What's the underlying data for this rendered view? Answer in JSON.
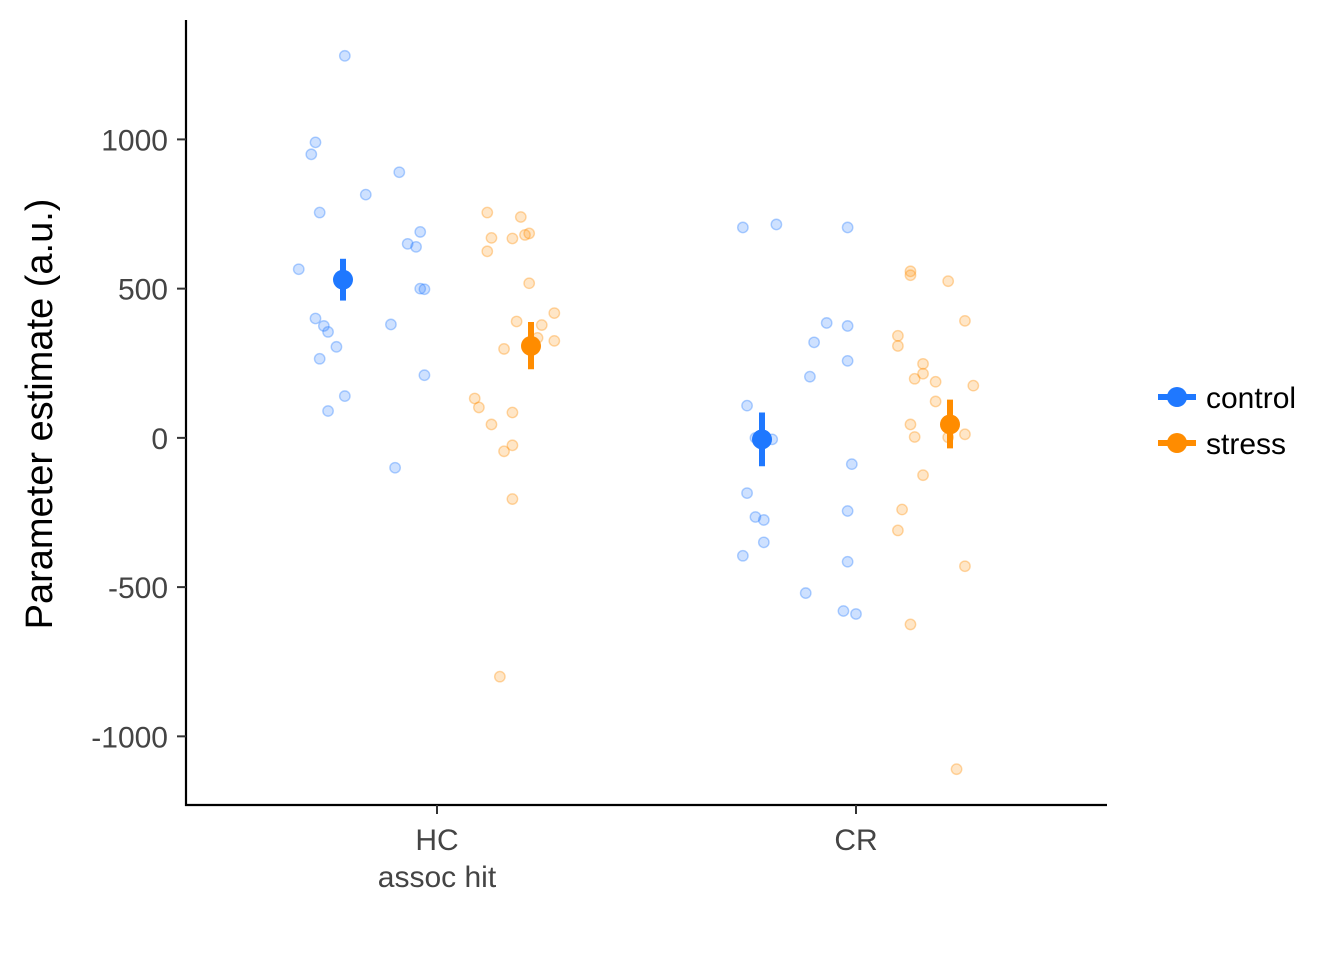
{
  "chart_data": {
    "type": "scatter",
    "ylabel": "Parameter estimate (a.u.)",
    "xlabel": "",
    "categories": [
      {
        "label": "HC",
        "sublabel": "assoc hit"
      },
      {
        "label": "CR",
        "sublabel": ""
      }
    ],
    "ylim": [
      -1230,
      1400
    ],
    "yticks": [
      1000,
      500,
      0,
      -500,
      -1000
    ],
    "ytick_labels": [
      "1000",
      "500",
      "0",
      "-500",
      "-1000"
    ],
    "grid": false,
    "legend_position": "right",
    "series": [
      {
        "name": "control",
        "color": "#1F78FF",
        "means": [
          530,
          -5
        ],
        "error_low": [
          460,
          -95
        ],
        "error_high": [
          600,
          85
        ],
        "points": [
          [
            {
              "x": 0.78,
              "y": 1280
            },
            {
              "x": 0.71,
              "y": 990
            },
            {
              "x": 0.7,
              "y": 950
            },
            {
              "x": 0.91,
              "y": 890
            },
            {
              "x": 0.83,
              "y": 815
            },
            {
              "x": 0.72,
              "y": 755
            },
            {
              "x": 0.96,
              "y": 690
            },
            {
              "x": 0.93,
              "y": 650
            },
            {
              "x": 0.95,
              "y": 640
            },
            {
              "x": 0.67,
              "y": 565
            },
            {
              "x": 0.96,
              "y": 500
            },
            {
              "x": 0.97,
              "y": 498
            },
            {
              "x": 0.71,
              "y": 400
            },
            {
              "x": 0.89,
              "y": 380
            },
            {
              "x": 0.73,
              "y": 375
            },
            {
              "x": 0.74,
              "y": 355
            },
            {
              "x": 0.76,
              "y": 305
            },
            {
              "x": 0.72,
              "y": 265
            },
            {
              "x": 0.97,
              "y": 210
            },
            {
              "x": 0.78,
              "y": 140
            },
            {
              "x": 0.74,
              "y": 90
            },
            {
              "x": 0.9,
              "y": -100
            }
          ],
          [
            {
              "x": 1.73,
              "y": 705
            },
            {
              "x": 1.81,
              "y": 715
            },
            {
              "x": 1.98,
              "y": 705
            },
            {
              "x": 1.93,
              "y": 385
            },
            {
              "x": 1.98,
              "y": 375
            },
            {
              "x": 1.9,
              "y": 320
            },
            {
              "x": 1.98,
              "y": 258
            },
            {
              "x": 1.89,
              "y": 205
            },
            {
              "x": 1.74,
              "y": 108
            },
            {
              "x": 1.76,
              "y": 0
            },
            {
              "x": 1.8,
              "y": -5
            },
            {
              "x": 1.99,
              "y": -88
            },
            {
              "x": 1.74,
              "y": -185
            },
            {
              "x": 1.98,
              "y": -245
            },
            {
              "x": 1.76,
              "y": -265
            },
            {
              "x": 1.78,
              "y": -275
            },
            {
              "x": 1.78,
              "y": -350
            },
            {
              "x": 1.73,
              "y": -395
            },
            {
              "x": 1.98,
              "y": -415
            },
            {
              "x": 1.88,
              "y": -520
            },
            {
              "x": 1.97,
              "y": -580
            },
            {
              "x": 2.0,
              "y": -590
            }
          ]
        ]
      },
      {
        "name": "stress",
        "color": "#FF8C00",
        "means": [
          308,
          45
        ],
        "error_low": [
          230,
          -35
        ],
        "error_high": [
          388,
          128
        ],
        "points": [
          [
            {
              "x": 1.12,
              "y": 755
            },
            {
              "x": 1.2,
              "y": 740
            },
            {
              "x": 1.22,
              "y": 685
            },
            {
              "x": 1.21,
              "y": 680
            },
            {
              "x": 1.13,
              "y": 670
            },
            {
              "x": 1.18,
              "y": 668
            },
            {
              "x": 1.12,
              "y": 625
            },
            {
              "x": 1.22,
              "y": 518
            },
            {
              "x": 1.28,
              "y": 418
            },
            {
              "x": 1.19,
              "y": 390
            },
            {
              "x": 1.25,
              "y": 378
            },
            {
              "x": 1.24,
              "y": 335
            },
            {
              "x": 1.28,
              "y": 325
            },
            {
              "x": 1.16,
              "y": 298
            },
            {
              "x": 1.09,
              "y": 132
            },
            {
              "x": 1.1,
              "y": 102
            },
            {
              "x": 1.18,
              "y": 85
            },
            {
              "x": 1.13,
              "y": 45
            },
            {
              "x": 1.18,
              "y": -25
            },
            {
              "x": 1.16,
              "y": -45
            },
            {
              "x": 1.18,
              "y": -205
            },
            {
              "x": 1.15,
              "y": -800
            }
          ],
          [
            {
              "x": 2.13,
              "y": 558
            },
            {
              "x": 2.13,
              "y": 545
            },
            {
              "x": 2.22,
              "y": 525
            },
            {
              "x": 2.26,
              "y": 392
            },
            {
              "x": 2.1,
              "y": 342
            },
            {
              "x": 2.1,
              "y": 308
            },
            {
              "x": 2.16,
              "y": 248
            },
            {
              "x": 2.16,
              "y": 215
            },
            {
              "x": 2.14,
              "y": 198
            },
            {
              "x": 2.19,
              "y": 188
            },
            {
              "x": 2.28,
              "y": 175
            },
            {
              "x": 2.19,
              "y": 122
            },
            {
              "x": 2.13,
              "y": 45
            },
            {
              "x": 2.26,
              "y": 12
            },
            {
              "x": 2.14,
              "y": 3
            },
            {
              "x": 2.22,
              "y": 2
            },
            {
              "x": 2.16,
              "y": -125
            },
            {
              "x": 2.11,
              "y": -240
            },
            {
              "x": 2.1,
              "y": -310
            },
            {
              "x": 2.26,
              "y": -430
            },
            {
              "x": 2.13,
              "y": -625
            },
            {
              "x": 2.24,
              "y": -1110
            }
          ]
        ]
      }
    ]
  }
}
